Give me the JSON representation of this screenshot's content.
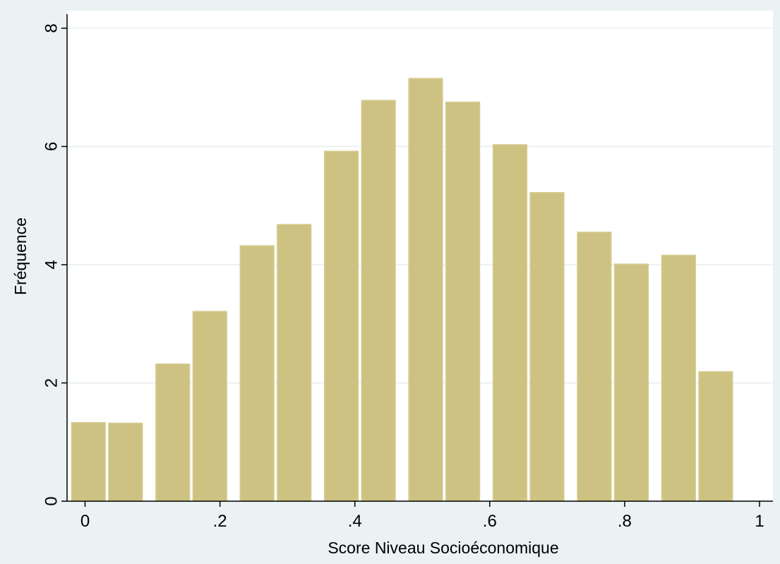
{
  "chart_data": {
    "type": "bar",
    "xlabel": "Score Niveau Socioéconomique",
    "ylabel": "Fréquence",
    "xlim": [
      -0.02,
      1.0
    ],
    "ylim": [
      0,
      8
    ],
    "x_ticks": [
      0,
      0.2,
      0.4,
      0.6,
      0.8,
      1
    ],
    "x_tick_labels": [
      "0",
      ".2",
      ".4",
      ".6",
      ".8",
      "1"
    ],
    "y_ticks": [
      0,
      2,
      4,
      6,
      8
    ],
    "y_tick_labels": [
      "0",
      "2",
      "4",
      "6",
      "8"
    ],
    "grid": true,
    "bins": [
      {
        "x0": -0.02,
        "x1": 0.03,
        "value": 1.33
      },
      {
        "x0": 0.035,
        "x1": 0.085,
        "value": 1.32
      },
      {
        "x0": 0.105,
        "x1": 0.155,
        "value": 2.32
      },
      {
        "x0": 0.16,
        "x1": 0.21,
        "value": 3.21
      },
      {
        "x0": 0.23,
        "x1": 0.28,
        "value": 4.32
      },
      {
        "x0": 0.285,
        "x1": 0.335,
        "value": 4.68
      },
      {
        "x0": 0.355,
        "x1": 0.405,
        "value": 5.92
      },
      {
        "x0": 0.41,
        "x1": 0.46,
        "value": 6.78
      },
      {
        "x0": 0.48,
        "x1": 0.53,
        "value": 7.15
      },
      {
        "x0": 0.535,
        "x1": 0.585,
        "value": 6.75
      },
      {
        "x0": 0.605,
        "x1": 0.655,
        "value": 6.03
      },
      {
        "x0": 0.66,
        "x1": 0.71,
        "value": 5.22
      },
      {
        "x0": 0.73,
        "x1": 0.78,
        "value": 4.55
      },
      {
        "x0": 0.785,
        "x1": 0.835,
        "value": 4.01
      },
      {
        "x0": 0.855,
        "x1": 0.905,
        "value": 4.16
      },
      {
        "x0": 0.91,
        "x1": 0.96,
        "value": 2.19
      }
    ]
  },
  "colors": {
    "background": "#eaf2f3",
    "plot_area": "#ffffff",
    "bar_fill": "#cdc281",
    "bar_stroke": "#d6cc92",
    "grid": "#e6eef0",
    "axis": "#000000"
  }
}
